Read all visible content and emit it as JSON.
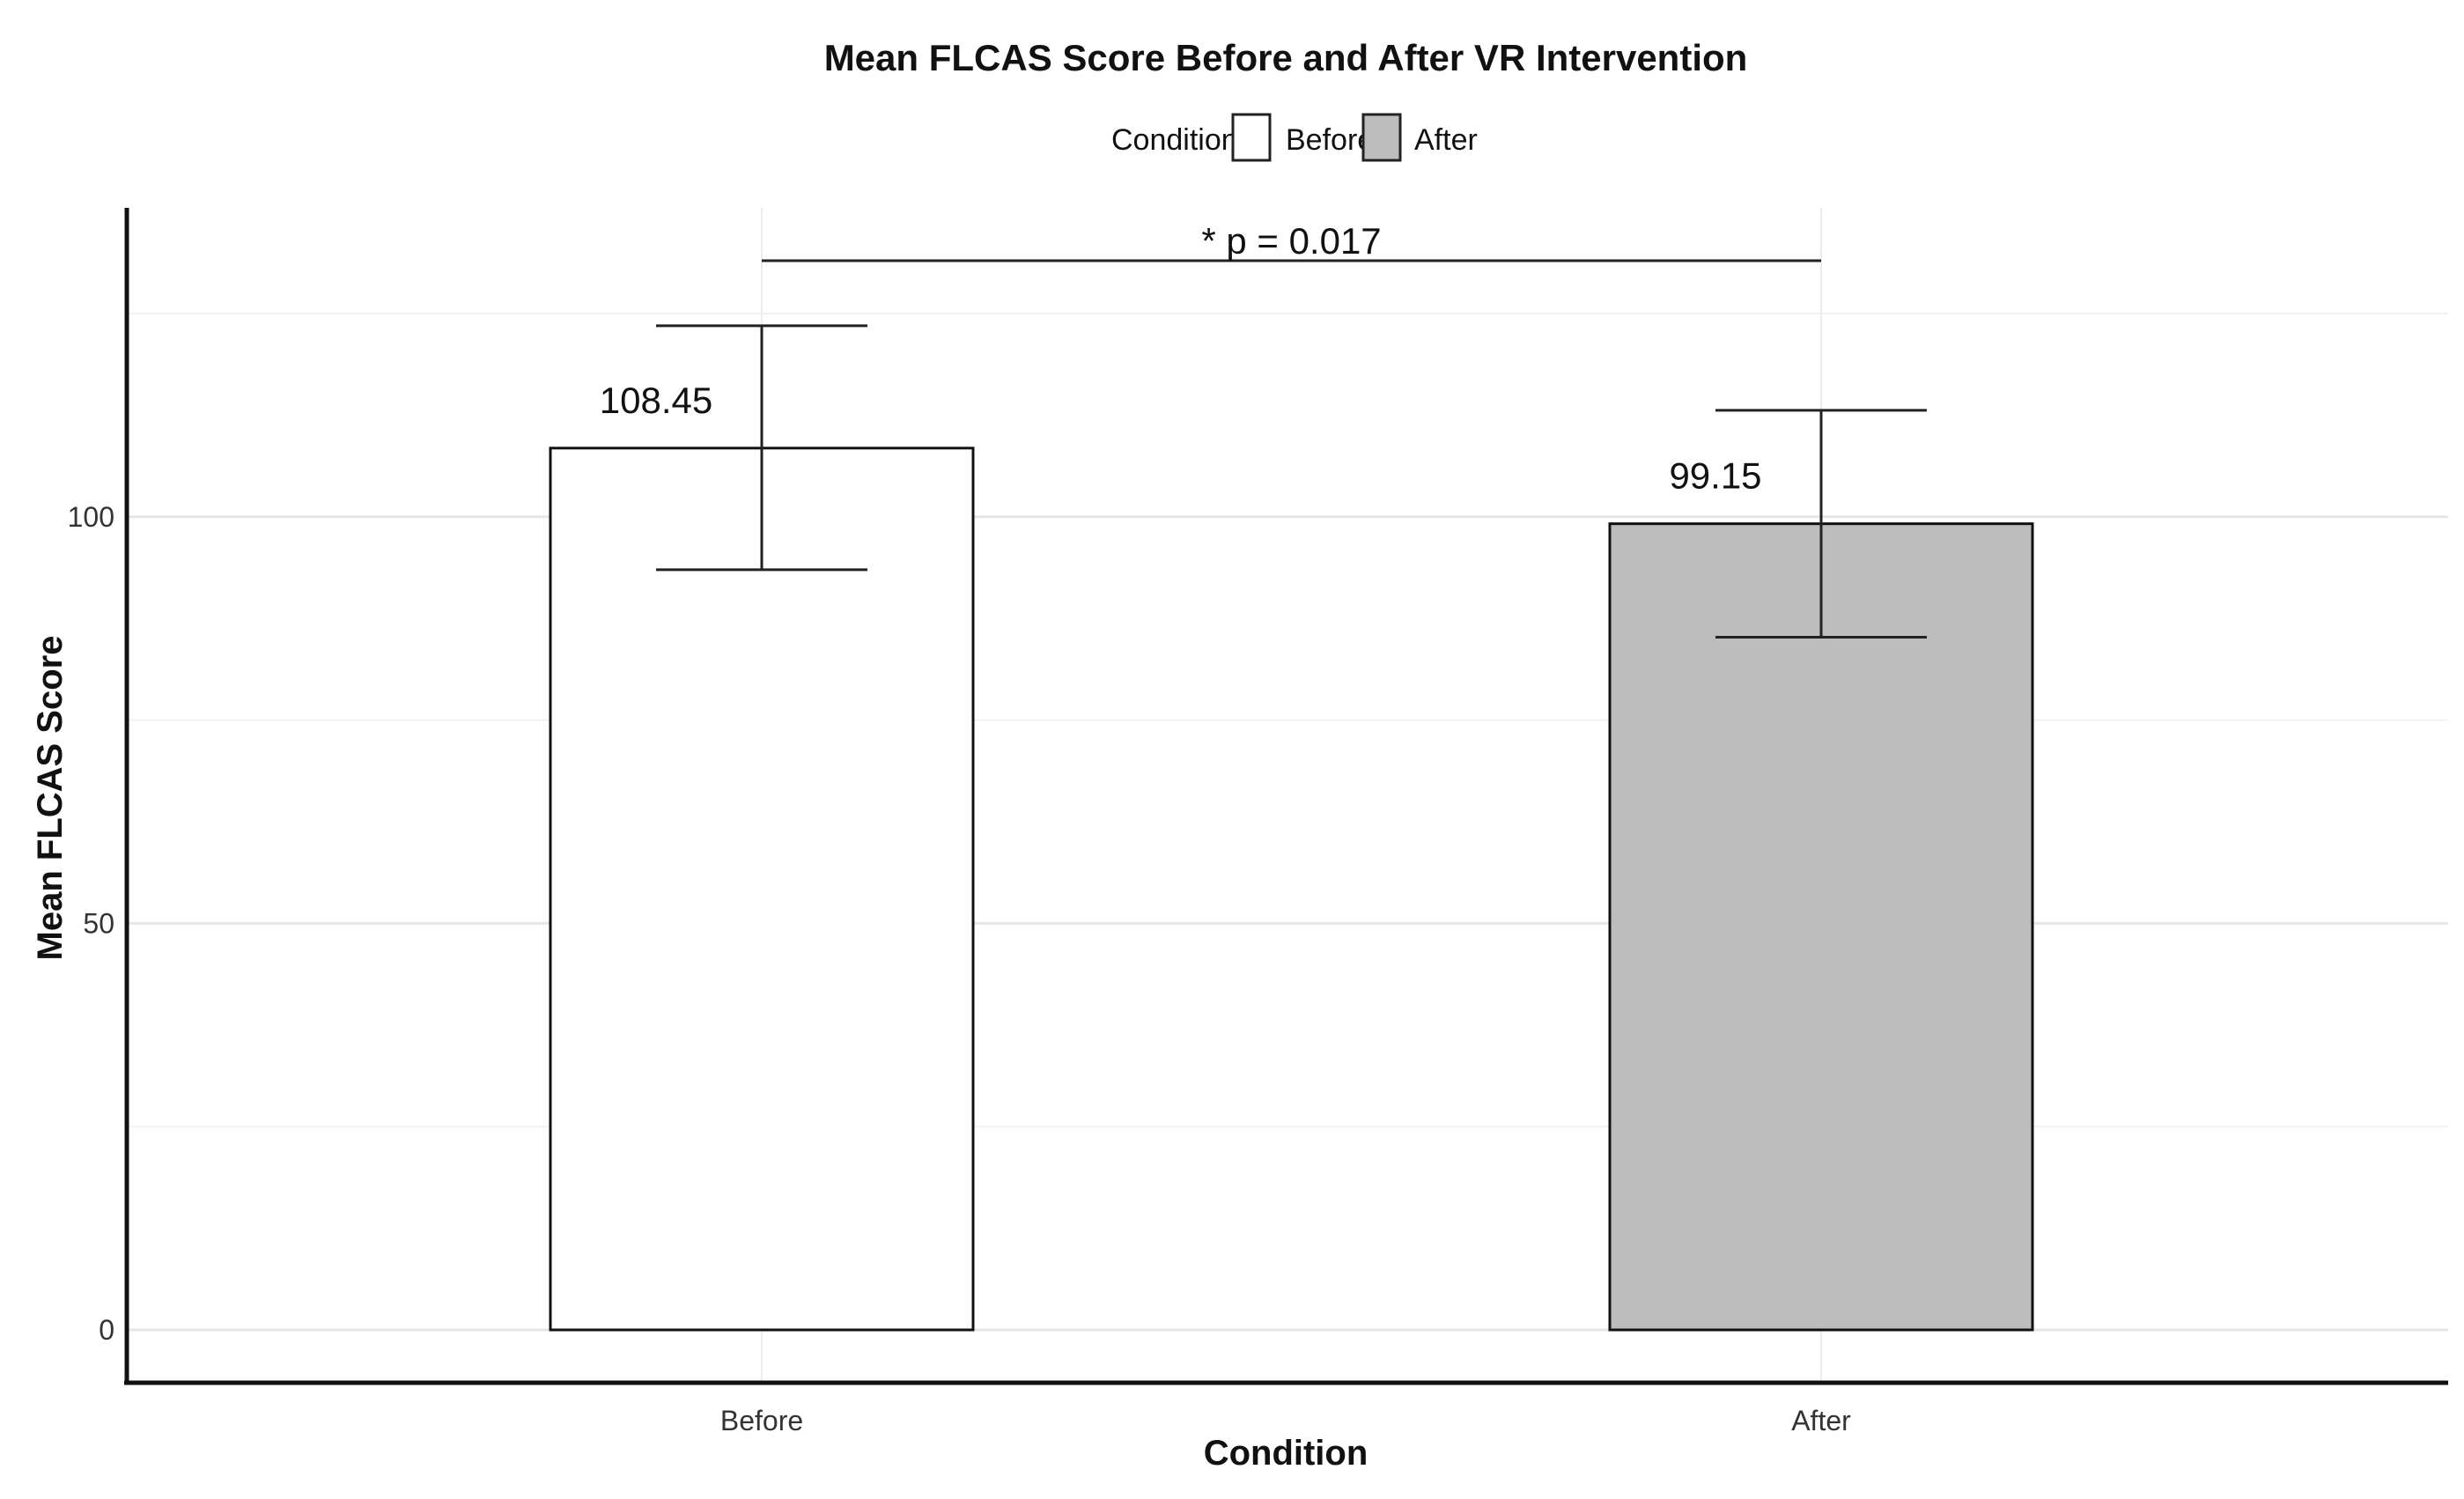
{
  "chart_data": {
    "type": "bar",
    "title": "Mean FLCAS Score Before and After VR Intervention",
    "xlabel": "Condition",
    "ylabel": "Mean FLCAS Score",
    "categories": [
      "Before",
      "After"
    ],
    "values": [
      108.45,
      99.15
    ],
    "data_labels": [
      "108.45",
      "99.15"
    ],
    "error_bars": [
      {
        "lower": 93.5,
        "upper": 123.5
      },
      {
        "lower": 85.2,
        "upper": 113.1
      }
    ],
    "ylim": [
      -6.5,
      138
    ],
    "yticks": [
      0,
      50,
      100
    ],
    "ytick_labels": [
      "0",
      "50",
      "100"
    ],
    "grid": true,
    "legend": {
      "title": "Condition",
      "placement": "top-center",
      "entries": [
        {
          "label": "Before",
          "color": "#ffffff"
        },
        {
          "label": "After",
          "color": "#bdbdbd"
        }
      ]
    },
    "significance": {
      "label": "* p = 0.017",
      "between": [
        "Before",
        "After"
      ],
      "y": 131.5
    },
    "colors": {
      "Before": "#ffffff",
      "After": "#bdbdbd"
    }
  }
}
